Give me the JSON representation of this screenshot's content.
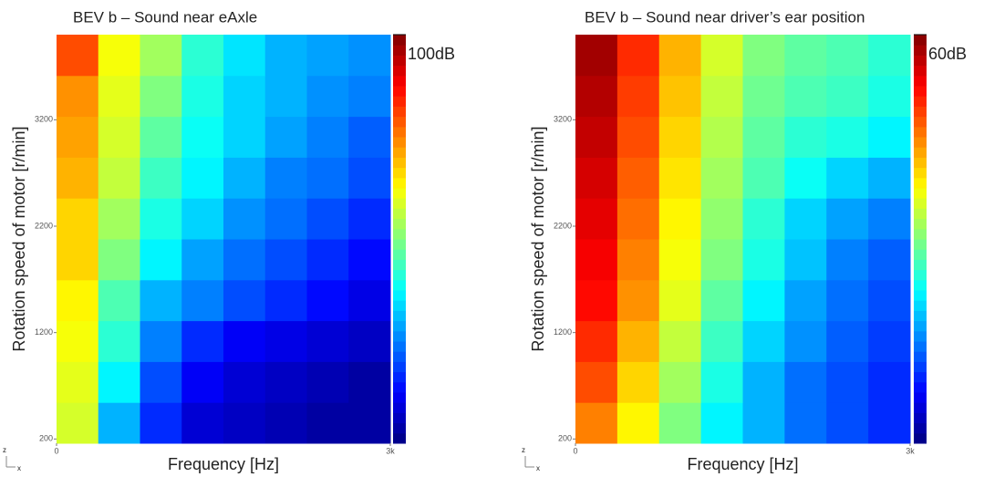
{
  "chart_data": [
    {
      "type": "heatmap",
      "title": "BEV b – Sound near eAxle",
      "xlabel": "Frequency [Hz]",
      "ylabel": "Rotation speed of motor [r/min]",
      "xlim": [
        0,
        3000
      ],
      "xticks": [
        0,
        {
          "value": 3000,
          "label": "3k"
        }
      ],
      "ylim": [
        160,
        4000
      ],
      "yticks": [
        200,
        1200,
        2200,
        3200
      ],
      "zlim": [
        40,
        100
      ],
      "zticks": [
        {
          "value": 100,
          "label": "100dB"
        }
      ],
      "colormap": "jet",
      "corner_axes": [
        "z",
        "x"
      ],
      "values": [
        [
          75,
          58,
          50,
          45,
          44,
          43,
          42,
          42
        ],
        [
          76,
          62,
          52,
          47,
          45,
          44,
          43,
          42
        ],
        [
          77,
          65,
          55,
          50,
          47,
          46,
          45,
          44
        ],
        [
          78,
          67,
          58,
          55,
          52,
          50,
          48,
          46
        ],
        [
          80,
          70,
          62,
          57,
          54,
          52,
          50,
          48
        ],
        [
          80,
          72,
          64,
          60,
          56,
          54,
          52,
          50
        ],
        [
          82,
          74,
          66,
          62,
          58,
          55,
          54,
          52
        ],
        [
          83,
          75,
          68,
          63,
          60,
          57,
          55,
          53
        ],
        [
          84,
          76,
          70,
          64,
          60,
          58,
          56,
          55
        ],
        [
          88,
          77,
          72,
          65,
          61,
          58,
          57,
          56
        ]
      ]
    },
    {
      "type": "heatmap",
      "title": "BEV b – Sound near driver’s ear position",
      "xlabel": "Frequency  [Hz]",
      "ylabel": "Rotation speed of motor [r/min]",
      "xlim": [
        0,
        3000
      ],
      "xticks": [
        0,
        {
          "value": 3000,
          "label": "3k"
        }
      ],
      "ylim": [
        160,
        4000
      ],
      "yticks": [
        200,
        1200,
        2200,
        3200
      ],
      "zlim": [
        0,
        60
      ],
      "zticks": [
        {
          "value": 60,
          "label": "60dB"
        }
      ],
      "colormap": "jet",
      "corner_axes": [
        "z",
        "x"
      ],
      "values": [
        [
          45,
          38,
          30,
          22,
          18,
          14,
          12,
          10
        ],
        [
          48,
          40,
          32,
          24,
          18,
          14,
          12,
          10
        ],
        [
          50,
          42,
          34,
          26,
          20,
          16,
          13,
          11
        ],
        [
          52,
          44,
          36,
          28,
          22,
          17,
          14,
          12
        ],
        [
          53,
          45,
          37,
          30,
          24,
          19,
          15,
          13
        ],
        [
          54,
          46,
          38,
          31,
          25,
          20,
          17,
          15
        ],
        [
          55,
          47,
          39,
          32,
          27,
          23,
          20,
          18
        ],
        [
          56,
          48,
          40,
          33,
          28,
          25,
          24,
          22
        ],
        [
          57,
          49,
          41,
          34,
          29,
          27,
          26,
          24
        ],
        [
          58,
          50,
          42,
          35,
          30,
          28,
          27,
          25
        ]
      ]
    }
  ]
}
